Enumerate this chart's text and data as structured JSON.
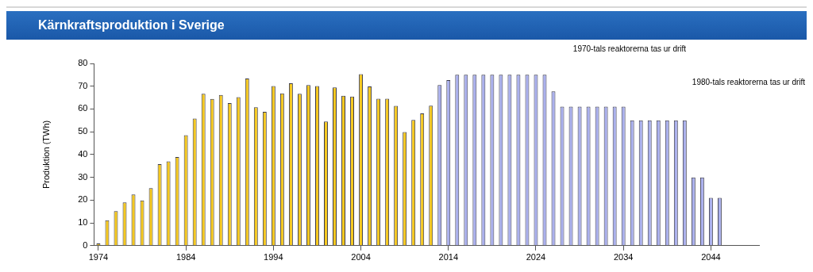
{
  "chart_data": {
    "type": "bar",
    "title": "Kärnkraftsproduktion i Sverige",
    "ylabel": "Produktion (TWh)",
    "categories": [
      "1974",
      null,
      null,
      null,
      null,
      null,
      null,
      null,
      null,
      null,
      "1984",
      null,
      null,
      null,
      null,
      null,
      null,
      null,
      null,
      null,
      "1994",
      null,
      null,
      null,
      null,
      null,
      null,
      null,
      null,
      null,
      "2004",
      null,
      null,
      null,
      null,
      null,
      null,
      null,
      null,
      null,
      "2014",
      null,
      null,
      null,
      null,
      null,
      null,
      null,
      null,
      null,
      "2024",
      null,
      null,
      null,
      null,
      null,
      null,
      null,
      null,
      null,
      "2034",
      null,
      null,
      null,
      null,
      null,
      null,
      null,
      null,
      null,
      "2044",
      null,
      null,
      null,
      null,
      null
    ],
    "series": [
      {
        "color": "#f5c81e",
        "values": [
          1,
          11.2,
          15.2,
          19,
          22.5,
          19.9,
          25.3,
          35.8,
          37,
          38.9,
          48.5,
          55.8,
          66.7,
          64.4,
          66.2,
          62.6,
          65.2,
          73.4,
          60.8,
          58.8,
          70.1,
          66.9,
          71.3,
          66.7,
          70.5,
          70.1,
          54.5,
          69.5,
          65.8,
          65.5,
          75.3,
          69.9,
          64.5,
          64.5,
          61.4,
          49.9,
          55.2,
          58.1,
          61.5,
          null,
          null,
          null,
          null,
          null,
          null,
          null,
          null,
          null,
          null,
          null,
          null,
          null,
          null,
          null,
          null,
          null,
          null,
          null,
          null,
          null,
          null,
          null,
          null,
          null,
          null,
          null,
          null,
          null,
          null,
          null,
          null,
          null,
          null,
          null,
          null,
          null
        ]
      },
      {
        "color": "#aab0ee",
        "values": [
          null,
          null,
          null,
          null,
          null,
          null,
          null,
          null,
          null,
          null,
          null,
          null,
          null,
          null,
          null,
          null,
          null,
          null,
          null,
          null,
          null,
          null,
          null,
          null,
          null,
          null,
          null,
          null,
          null,
          null,
          null,
          null,
          null,
          null,
          null,
          null,
          null,
          null,
          null,
          70.5,
          72.7,
          75,
          75,
          75,
          75,
          75,
          75,
          75,
          75,
          75,
          75,
          75,
          67.7,
          61,
          61,
          61,
          61,
          61,
          61,
          61,
          61,
          55,
          55,
          55,
          55,
          55,
          55,
          55,
          30,
          30,
          21,
          21,
          null,
          null,
          null,
          null
        ]
      }
    ],
    "ylim": [
      0,
      80
    ],
    "yticks": [
      0,
      10,
      20,
      30,
      40,
      50,
      60,
      70,
      80
    ],
    "grid": false,
    "legend": false,
    "annotations": [
      "1970-tals reaktorerna tas ur drift",
      "1980-tals reaktorerna tas ur drift"
    ]
  }
}
